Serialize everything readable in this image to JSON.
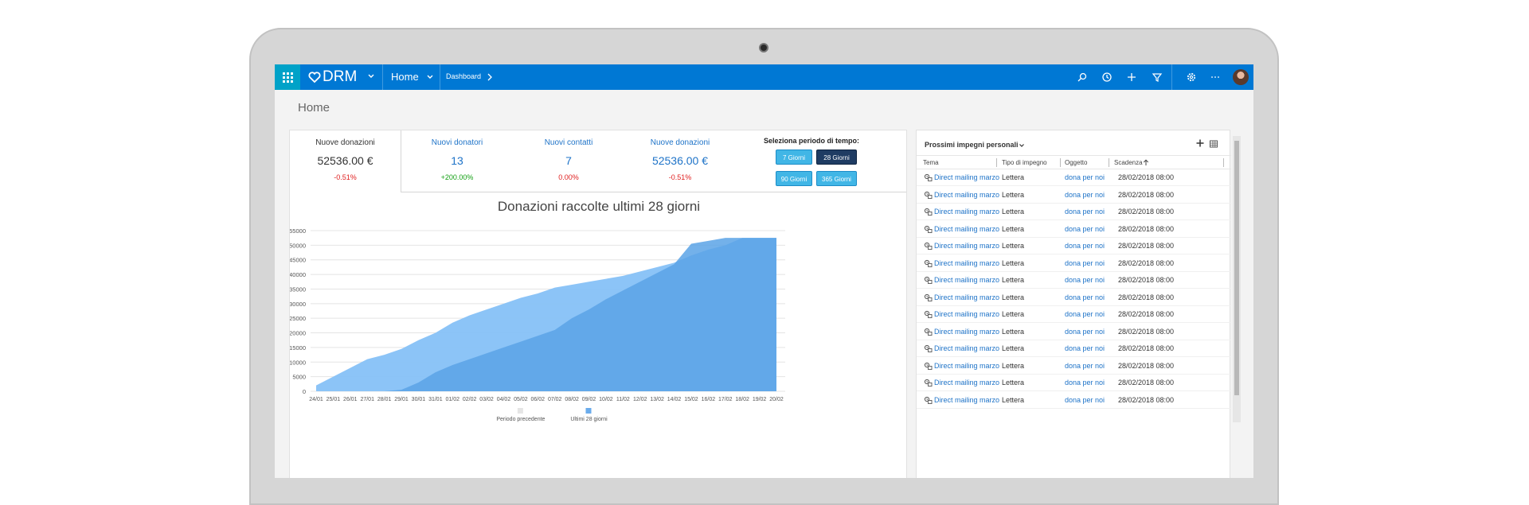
{
  "nav": {
    "brand": "DRM",
    "area": "Home",
    "breadcrumb": "Dashboard"
  },
  "page": {
    "title": "Home"
  },
  "kpis": [
    {
      "label": "Nuove donazioni",
      "value": "52536.00 €",
      "delta": "-0.51%",
      "delta_color": "#e02020",
      "label_color": "#333333",
      "value_color": "#333333"
    },
    {
      "label": "Nuovi donatori",
      "value": "13",
      "delta": "+200.00%",
      "delta_color": "#14a014",
      "label_color": "#1e73c8",
      "value_color": "#1e73c8"
    },
    {
      "label": "Nuovi contatti",
      "value": "7",
      "delta": "0.00%",
      "delta_color": "#e02020",
      "label_color": "#1e73c8",
      "value_color": "#1e73c8"
    },
    {
      "label": "Nuove donazioni",
      "value": "52536.00 €",
      "delta": "-0.51%",
      "delta_color": "#e02020",
      "label_color": "#1e73c8",
      "value_color": "#1e73c8"
    }
  ],
  "period": {
    "title": "Seleziona periodo di tempo:",
    "buttons": [
      "7 Giorni",
      "28 Giorni",
      "90 Giorni",
      "365 Giorni"
    ],
    "selected": "28 Giorni"
  },
  "chart_title": "Donazioni raccolte ultimi 28 giorni",
  "chart_data": {
    "type": "area",
    "title": "Donazioni raccolte ultimi 28 giorni",
    "xlabel": "",
    "ylabel": "",
    "ylim": [
      0,
      55000
    ],
    "yticks": [
      0,
      5000,
      10000,
      15000,
      20000,
      25000,
      30000,
      35000,
      40000,
      45000,
      50000,
      55000
    ],
    "grid": true,
    "legend_position": "bottom",
    "x": [
      "24/01",
      "25/01",
      "26/01",
      "27/01",
      "28/01",
      "29/01",
      "30/01",
      "31/01",
      "01/02",
      "02/02",
      "03/02",
      "04/02",
      "05/02",
      "06/02",
      "07/02",
      "08/02",
      "09/02",
      "10/02",
      "11/02",
      "12/02",
      "13/02",
      "14/02",
      "15/02",
      "16/02",
      "17/02",
      "18/02",
      "19/02",
      "20/02"
    ],
    "series": [
      {
        "name": "Periodo precedente",
        "color": "#e5e5e5",
        "values": [
          2000,
          5000,
          8000,
          11000,
          12500,
          14500,
          17500,
          20000,
          23500,
          26000,
          28000,
          30000,
          32000,
          33500,
          35500,
          36500,
          37500,
          38500,
          39500,
          41000,
          42500,
          44000,
          46500,
          48500,
          50000,
          52500,
          52500,
          52500
        ]
      },
      {
        "name": "Ultimi 28 giorni",
        "color": "#6aacec",
        "values": [
          0,
          0,
          0,
          0,
          0,
          500,
          3000,
          6500,
          9000,
          11000,
          13000,
          15000,
          17000,
          19000,
          21000,
          25000,
          28000,
          31500,
          34500,
          37500,
          40500,
          43500,
          50500,
          51500,
          52500,
          52500,
          52500,
          52500
        ]
      }
    ]
  },
  "appointments": {
    "title": "Prossimi impegni personali",
    "columns": [
      "Tema",
      "Tipo di impegno",
      "Oggetto",
      "Scadenza"
    ],
    "rows": [
      {
        "tema": "Direct mailing marzo",
        "tipo": "Lettera",
        "oggetto": "dona per noi",
        "scadenza": "28/02/2018 08:00"
      },
      {
        "tema": "Direct mailing marzo",
        "tipo": "Lettera",
        "oggetto": "dona per noi",
        "scadenza": "28/02/2018 08:00"
      },
      {
        "tema": "Direct mailing marzo",
        "tipo": "Lettera",
        "oggetto": "dona per noi",
        "scadenza": "28/02/2018 08:00"
      },
      {
        "tema": "Direct mailing marzo",
        "tipo": "Lettera",
        "oggetto": "dona per noi",
        "scadenza": "28/02/2018 08:00"
      },
      {
        "tema": "Direct mailing marzo",
        "tipo": "Lettera",
        "oggetto": "dona per noi",
        "scadenza": "28/02/2018 08:00"
      },
      {
        "tema": "Direct mailing marzo",
        "tipo": "Lettera",
        "oggetto": "dona per noi",
        "scadenza": "28/02/2018 08:00"
      },
      {
        "tema": "Direct mailing marzo",
        "tipo": "Lettera",
        "oggetto": "dona per noi",
        "scadenza": "28/02/2018 08:00"
      },
      {
        "tema": "Direct mailing marzo",
        "tipo": "Lettera",
        "oggetto": "dona per noi",
        "scadenza": "28/02/2018 08:00"
      },
      {
        "tema": "Direct mailing marzo",
        "tipo": "Lettera",
        "oggetto": "dona per noi",
        "scadenza": "28/02/2018 08:00"
      },
      {
        "tema": "Direct mailing marzo",
        "tipo": "Lettera",
        "oggetto": "dona per noi",
        "scadenza": "28/02/2018 08:00"
      },
      {
        "tema": "Direct mailing marzo",
        "tipo": "Lettera",
        "oggetto": "dona per noi",
        "scadenza": "28/02/2018 08:00"
      },
      {
        "tema": "Direct mailing marzo",
        "tipo": "Lettera",
        "oggetto": "dona per noi",
        "scadenza": "28/02/2018 08:00"
      },
      {
        "tema": "Direct mailing marzo",
        "tipo": "Lettera",
        "oggetto": "dona per noi",
        "scadenza": "28/02/2018 08:00"
      },
      {
        "tema": "Direct mailing marzo",
        "tipo": "Lettera",
        "oggetto": "dona per noi",
        "scadenza": "28/02/2018 08:00"
      }
    ]
  },
  "colors": {
    "navbar": "#0078d4",
    "apps_tile": "#00a2c8",
    "link": "#1e73c8",
    "selected_button": "#1f3c63",
    "button": "#41b6e6"
  },
  "icons": [
    "apps-grid-icon",
    "heart-icon",
    "chevron-down-icon",
    "chevron-right-icon",
    "search-icon",
    "history-icon",
    "plus-icon",
    "filter-icon",
    "settings-icon",
    "more-icon",
    "avatar",
    "plus-icon",
    "grid-view-icon",
    "sort-up-icon",
    "appointment-icon"
  ]
}
